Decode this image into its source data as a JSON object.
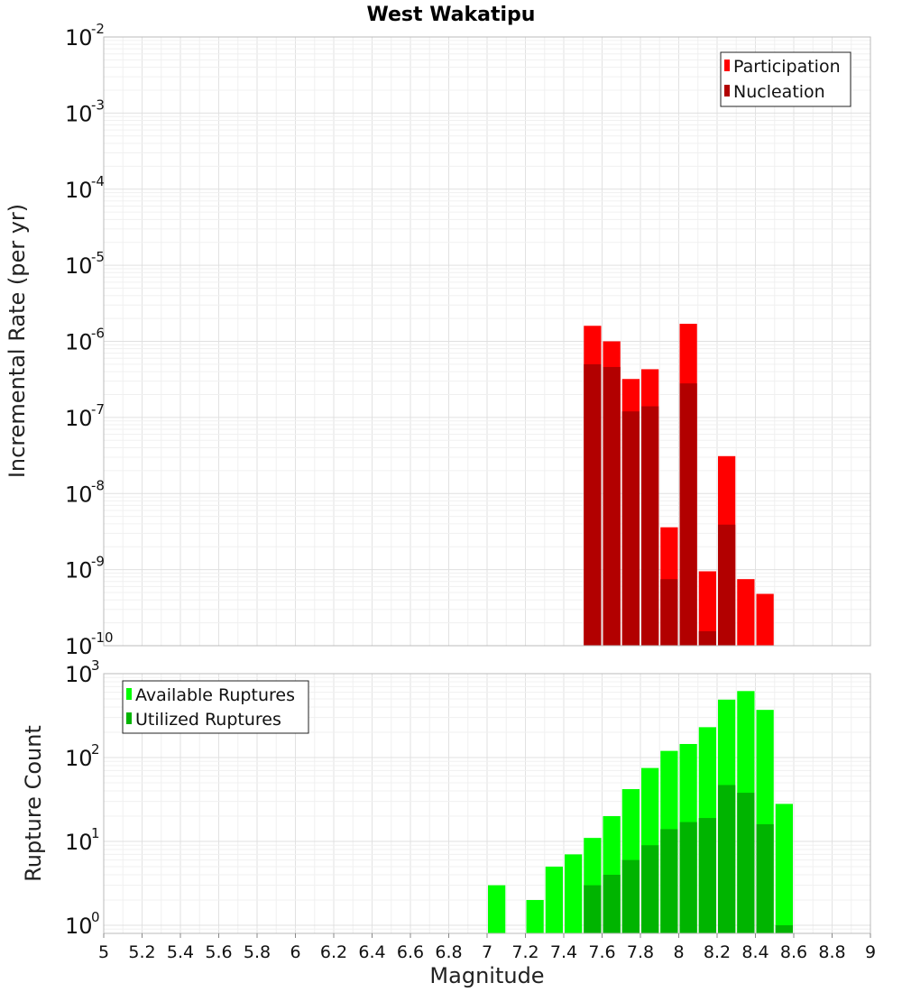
{
  "title": "West Wakatipu",
  "colors": {
    "participation": "#ff0000",
    "nucleation": "#b20000",
    "available": "#00ff00",
    "utilized": "#00b400",
    "grid": "#e6e6e6",
    "frame": "#bbbbbb"
  },
  "chart_data": [
    {
      "type": "bar",
      "title": "West Wakatipu",
      "ylabel": "Incremental Rate (per yr)",
      "xlabel": "",
      "xlim": [
        5,
        9
      ],
      "ylim": [
        1e-10,
        0.01
      ],
      "yscale": "log",
      "ytick_exponents": [
        -10,
        -9,
        -8,
        -7,
        -6,
        -5,
        -4,
        -3,
        -2
      ],
      "grid": true,
      "legend_position": "top-right",
      "bin_width": 0.1,
      "series": [
        {
          "name": "Participation",
          "x": [
            7.55,
            7.65,
            7.75,
            7.85,
            7.95,
            8.05,
            8.15,
            8.25,
            8.35,
            8.45
          ],
          "values": [
            1.6e-06,
            1e-06,
            3.2e-07,
            4.3e-07,
            3.6e-09,
            1.7e-06,
            9.5e-10,
            3.1e-08,
            7.5e-10,
            4.8e-10
          ]
        },
        {
          "name": "Nucleation",
          "x": [
            7.55,
            7.65,
            7.75,
            7.85,
            7.95,
            8.05,
            8.15,
            8.25
          ],
          "values": [
            5e-07,
            4.6e-07,
            1.2e-07,
            1.4e-07,
            7.5e-10,
            2.8e-07,
            1.55e-10,
            3.9e-09
          ]
        }
      ]
    },
    {
      "type": "bar",
      "title": "",
      "ylabel": "Rupture Count",
      "xlabel": "Magnitude",
      "xlim": [
        5,
        9
      ],
      "ylim": [
        0.8,
        1000
      ],
      "yscale": "log",
      "ytick_exponents": [
        0,
        1,
        2,
        3
      ],
      "xticks": [
        "5",
        "5.2",
        "5.4",
        "5.6",
        "5.8",
        "6",
        "6.2",
        "6.4",
        "6.6",
        "6.8",
        "7",
        "7.2",
        "7.4",
        "7.6",
        "7.8",
        "8",
        "8.2",
        "8.4",
        "8.6",
        "8.8",
        "9"
      ],
      "grid": true,
      "legend_position": "top-left",
      "bin_width": 0.1,
      "series": [
        {
          "name": "Available Ruptures",
          "x": [
            7.05,
            7.25,
            7.35,
            7.45,
            7.55,
            7.65,
            7.75,
            7.85,
            7.95,
            8.05,
            8.15,
            8.25,
            8.35,
            8.45,
            8.55
          ],
          "values": [
            3,
            2,
            5,
            7,
            11,
            20,
            42,
            75,
            120,
            145,
            230,
            490,
            620,
            370,
            28
          ]
        },
        {
          "name": "Utilized Ruptures",
          "x": [
            7.55,
            7.65,
            7.75,
            7.85,
            7.95,
            8.05,
            8.15,
            8.25,
            8.35,
            8.45,
            8.55
          ],
          "values": [
            3,
            4,
            6,
            9,
            14,
            17,
            19,
            47,
            38,
            16,
            1
          ]
        }
      ]
    }
  ]
}
